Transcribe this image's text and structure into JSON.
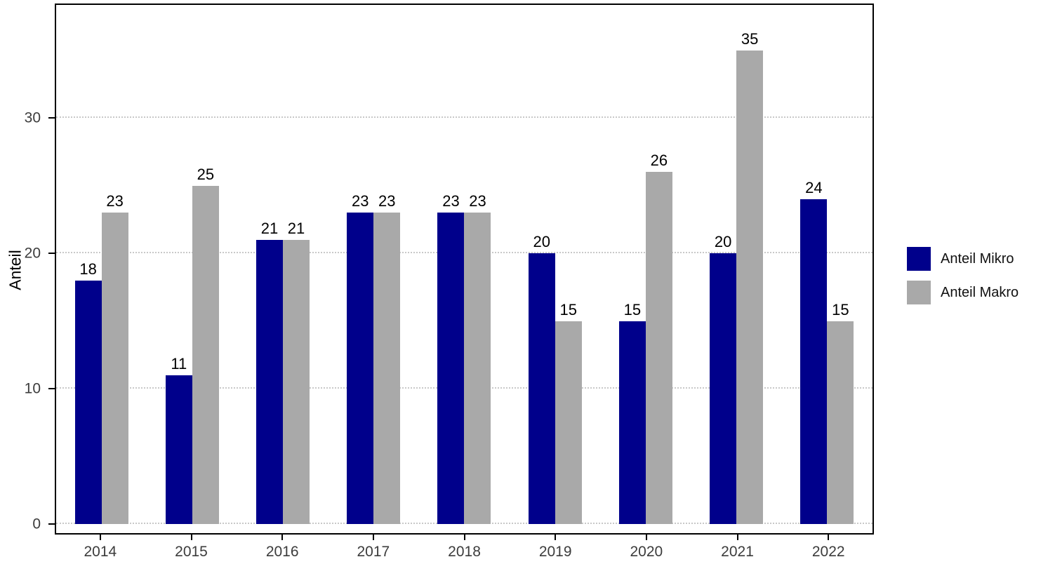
{
  "chart_data": {
    "type": "bar",
    "categories": [
      "2014",
      "2015",
      "2016",
      "2017",
      "2018",
      "2019",
      "2020",
      "2021",
      "2022"
    ],
    "series": [
      {
        "name": "Anteil Mikro",
        "color": "#00008B",
        "values": [
          18,
          11,
          21,
          23,
          23,
          20,
          15,
          20,
          24
        ]
      },
      {
        "name": "Anteil Makro",
        "color": "#A9A9A9",
        "values": [
          23,
          25,
          21,
          23,
          23,
          15,
          26,
          35,
          15
        ]
      }
    ],
    "title": "",
    "xlabel": "",
    "ylabel": "Anteil",
    "yticks": [
      0,
      10,
      20,
      30
    ],
    "ylim": [
      0,
      38.4
    ],
    "grid": "horizontal-dotted",
    "legend_position": "right",
    "bar_labels_shown": true
  }
}
